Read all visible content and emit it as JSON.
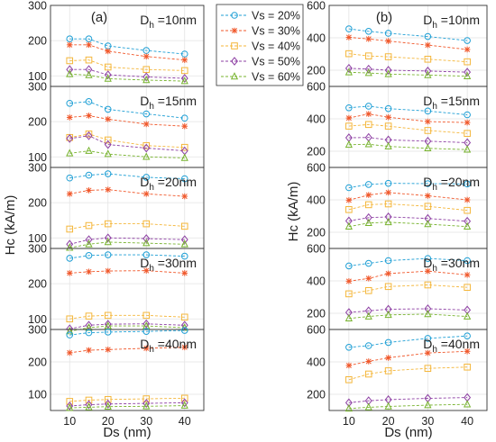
{
  "legend": [
    {
      "label": "Vs = 20%",
      "color": "#1f9fd5",
      "marker": "circle"
    },
    {
      "label": "Vs = 30%",
      "color": "#f0572a",
      "marker": "star"
    },
    {
      "label": "Vs = 40%",
      "color": "#f4b63a",
      "marker": "square"
    },
    {
      "label": "Vs = 50%",
      "color": "#8d3fa3",
      "marker": "diamond"
    },
    {
      "label": "Vs = 60%",
      "color": "#77b32e",
      "marker": "triangle"
    }
  ],
  "chart_data": [
    {
      "type": "line",
      "title": "(a)",
      "xlabel": "Ds (nm)",
      "ylabel": "Hc (kA/m)",
      "x": [
        10,
        15,
        20,
        30,
        40
      ],
      "xticks": [
        "10",
        "20",
        "30",
        "40"
      ],
      "grid": true,
      "legend_position": "right, between panels",
      "subplots": [
        {
          "label_main": "D",
          "label_sub": "h",
          "label_rest": " =10nm",
          "ylim": [
            70,
            300
          ],
          "yticks": [
            "100",
            "200",
            "300"
          ],
          "series": [
            {
              "name": "Vs = 20%",
              "values": [
                205,
                205,
                185,
                172,
                162
              ]
            },
            {
              "name": "Vs = 30%",
              "values": [
                188,
                188,
                170,
                155,
                145
              ]
            },
            {
              "name": "Vs = 40%",
              "values": [
                143,
                145,
                125,
                118,
                115
              ]
            },
            {
              "name": "Vs = 50%",
              "values": [
                118,
                118,
                103,
                97,
                93
              ]
            },
            {
              "name": "Vs = 60%",
              "values": [
                105,
                102,
                92,
                88,
                85
              ]
            }
          ]
        },
        {
          "label_main": "D",
          "label_sub": "h",
          "label_rest": " =15nm",
          "ylim": [
            70,
            300
          ],
          "yticks": [
            "100",
            "200",
            "300"
          ],
          "series": [
            {
              "name": "Vs = 20%",
              "values": [
                252,
                257,
                235,
                222,
                210
              ]
            },
            {
              "name": "Vs = 30%",
              "values": [
                212,
                217,
                207,
                193,
                187
              ]
            },
            {
              "name": "Vs = 40%",
              "values": [
                155,
                165,
                148,
                132,
                127
              ]
            },
            {
              "name": "Vs = 50%",
              "values": [
                152,
                160,
                135,
                125,
                117
              ]
            },
            {
              "name": "Vs = 60%",
              "values": [
                110,
                117,
                108,
                100,
                97
              ]
            }
          ]
        },
        {
          "label_main": "D",
          "label_sub": "h",
          "label_rest": " =20nm",
          "ylim": [
            70,
            300
          ],
          "yticks": [
            "100",
            "200",
            "300"
          ],
          "series": [
            {
              "name": "Vs = 20%",
              "values": [
                270,
                278,
                282,
                272,
                268
              ]
            },
            {
              "name": "Vs = 30%",
              "values": [
                225,
                235,
                237,
                225,
                218
              ]
            },
            {
              "name": "Vs = 40%",
              "values": [
                125,
                135,
                140,
                140,
                133
              ]
            },
            {
              "name": "Vs = 50%",
              "values": [
                82,
                95,
                100,
                98,
                95
              ]
            },
            {
              "name": "Vs = 60%",
              "values": [
                72,
                82,
                88,
                85,
                82
              ]
            }
          ]
        },
        {
          "label_main": "D",
          "label_sub": "h",
          "label_rest": " =30nm",
          "ylim": [
            70,
            300
          ],
          "yticks": [
            "100",
            "200",
            "300"
          ],
          "series": [
            {
              "name": "Vs = 20%",
              "values": [
                272,
                280,
                282,
                282,
                278
              ]
            },
            {
              "name": "Vs = 30%",
              "values": [
                230,
                234,
                236,
                237,
                230
              ]
            },
            {
              "name": "Vs = 40%",
              "values": [
                100,
                108,
                110,
                110,
                105
              ]
            },
            {
              "name": "Vs = 50%",
              "values": [
                72,
                82,
                85,
                86,
                82
              ]
            },
            {
              "name": "Vs = 60%",
              "values": [
                65,
                75,
                80,
                80,
                75
              ]
            }
          ]
        },
        {
          "label_main": "D",
          "label_sub": "h",
          "label_rest": " =40nm",
          "ylim": [
            50,
            300
          ],
          "yticks": [
            "100",
            "200",
            "300"
          ],
          "series": [
            {
              "name": "Vs = 20%",
              "values": [
                283,
                290,
                292,
                294,
                297
              ]
            },
            {
              "name": "Vs = 30%",
              "values": [
                228,
                236,
                238,
                242,
                245
              ]
            },
            {
              "name": "Vs = 40%",
              "values": [
                78,
                82,
                84,
                86,
                88
              ]
            },
            {
              "name": "Vs = 50%",
              "values": [
                64,
                68,
                70,
                72,
                74
              ]
            },
            {
              "name": "Vs = 60%",
              "values": [
                58,
                60,
                62,
                63,
                65
              ]
            }
          ]
        }
      ]
    },
    {
      "type": "line",
      "title": "(b)",
      "xlabel": "Ds (nm)",
      "ylabel": "Hc (kA/m)",
      "x": [
        10,
        15,
        20,
        30,
        40
      ],
      "xticks": [
        "10",
        "20",
        "30",
        "40"
      ],
      "grid": true,
      "subplots": [
        {
          "label_main": "D",
          "label_sub": "h",
          "label_rest": " =10nm",
          "ylim": [
            100,
            600
          ],
          "yticks": [
            "200",
            "400",
            "600"
          ],
          "series": [
            {
              "name": "Vs = 20%",
              "values": [
                455,
                440,
                428,
                408,
                383
              ]
            },
            {
              "name": "Vs = 30%",
              "values": [
                403,
                393,
                380,
                355,
                328
              ]
            },
            {
              "name": "Vs = 40%",
              "values": [
                302,
                288,
                283,
                268,
                252
              ]
            },
            {
              "name": "Vs = 50%",
              "values": [
                212,
                207,
                200,
                195,
                188
              ]
            },
            {
              "name": "Vs = 60%",
              "values": [
                187,
                183,
                176,
                170,
                163
              ]
            }
          ]
        },
        {
          "label_main": "D",
          "label_sub": "h",
          "label_rest": " =15nm",
          "ylim": [
            100,
            600
          ],
          "yticks": [
            "200",
            "400",
            "600"
          ],
          "series": [
            {
              "name": "Vs = 20%",
              "values": [
                468,
                478,
                463,
                448,
                425
              ]
            },
            {
              "name": "Vs = 30%",
              "values": [
                405,
                430,
                410,
                383,
                377
              ]
            },
            {
              "name": "Vs = 40%",
              "values": [
                355,
                365,
                355,
                328,
                310
              ]
            },
            {
              "name": "Vs = 50%",
              "values": [
                283,
                285,
                270,
                262,
                253
              ]
            },
            {
              "name": "Vs = 60%",
              "values": [
                240,
                243,
                230,
                218,
                210
              ]
            }
          ]
        },
        {
          "label_main": "D",
          "label_sub": "h",
          "label_rest": " =20nm",
          "ylim": [
            100,
            600
          ],
          "yticks": [
            "200",
            "400",
            "600"
          ],
          "series": [
            {
              "name": "Vs = 20%",
              "values": [
                475,
                495,
                502,
                500,
                498
              ]
            },
            {
              "name": "Vs = 30%",
              "values": [
                398,
                430,
                445,
                425,
                400
              ]
            },
            {
              "name": "Vs = 40%",
              "values": [
                340,
                370,
                375,
                360,
                335
              ]
            },
            {
              "name": "Vs = 50%",
              "values": [
                270,
                290,
                295,
                285,
                268
              ]
            },
            {
              "name": "Vs = 60%",
              "values": [
                235,
                257,
                262,
                250,
                235
              ]
            }
          ]
        },
        {
          "label_main": "D",
          "label_sub": "h",
          "label_rest": " =30nm",
          "ylim": [
            100,
            600
          ],
          "yticks": [
            "200",
            "400",
            "600"
          ],
          "series": [
            {
              "name": "Vs = 20%",
              "values": [
                492,
                508,
                525,
                538,
                525
              ]
            },
            {
              "name": "Vs = 30%",
              "values": [
                398,
                415,
                445,
                460,
                437
              ]
            },
            {
              "name": "Vs = 40%",
              "values": [
                320,
                340,
                365,
                375,
                360
              ]
            },
            {
              "name": "Vs = 50%",
              "values": [
                205,
                215,
                225,
                228,
                220
              ]
            },
            {
              "name": "Vs = 60%",
              "values": [
                168,
                180,
                190,
                195,
                180
              ]
            }
          ]
        },
        {
          "label_main": "D",
          "label_sub": "h",
          "label_rest": " =40nm",
          "ylim": [
            100,
            600
          ],
          "yticks": [
            "200",
            "400",
            "600"
          ],
          "series": [
            {
              "name": "Vs = 20%",
              "values": [
                490,
                500,
                520,
                545,
                560
              ]
            },
            {
              "name": "Vs = 30%",
              "values": [
                378,
                403,
                425,
                455,
                465
              ]
            },
            {
              "name": "Vs = 40%",
              "values": [
                290,
                325,
                345,
                360,
                368
              ]
            },
            {
              "name": "Vs = 50%",
              "values": [
                148,
                160,
                167,
                175,
                180
              ]
            },
            {
              "name": "Vs = 60%",
              "values": [
                112,
                120,
                125,
                133,
                138
              ]
            }
          ]
        }
      ]
    }
  ]
}
